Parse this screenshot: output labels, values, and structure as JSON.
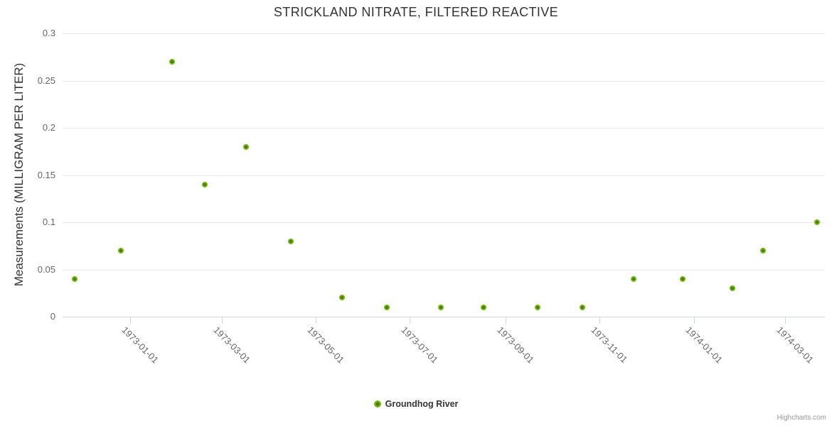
{
  "credits": "Highcharts.com",
  "colors": {
    "title_text": "#333333",
    "axis_label_text": "#666666",
    "gridline": "#e6e6e6",
    "axis_line": "#ccd6eb",
    "marker_outer": "#76b80e",
    "marker_center": "#3f7c05",
    "credits_text": "#999999",
    "background": "#ffffff"
  },
  "chart_data": {
    "type": "scatter",
    "title": "STRICKLAND NITRATE, FILTERED REACTIVE",
    "xlabel": "",
    "ylabel": "Measurements (MILLIGRAM PER LITER)",
    "ylim": [
      0,
      0.3
    ],
    "xlim": [
      "1972-11-18",
      "1974-03-27"
    ],
    "y_ticks": [
      0,
      0.05,
      0.1,
      0.15,
      0.2,
      0.25,
      0.3
    ],
    "x_ticks": [
      "1973-01-01",
      "1973-03-01",
      "1973-05-01",
      "1973-07-01",
      "1973-09-01",
      "1973-11-01",
      "1974-01-01",
      "1974-03-01"
    ],
    "grid": "horizontal-only",
    "legend_position": "bottom-center",
    "series": [
      {
        "name": "Groundhog River",
        "color": "#76b80e",
        "points": [
          {
            "x": "1972-11-26",
            "y": 0.04
          },
          {
            "x": "1972-12-26",
            "y": 0.07
          },
          {
            "x": "1973-01-28",
            "y": 0.27
          },
          {
            "x": "1973-02-18",
            "y": 0.14
          },
          {
            "x": "1973-03-17",
            "y": 0.18
          },
          {
            "x": "1973-04-15",
            "y": 0.08
          },
          {
            "x": "1973-05-18",
            "y": 0.02
          },
          {
            "x": "1973-06-16",
            "y": 0.01
          },
          {
            "x": "1973-07-21",
            "y": 0.01
          },
          {
            "x": "1973-08-18",
            "y": 0.01
          },
          {
            "x": "1973-09-22",
            "y": 0.01
          },
          {
            "x": "1973-10-21",
            "y": 0.01
          },
          {
            "x": "1973-11-23",
            "y": 0.04
          },
          {
            "x": "1973-12-25",
            "y": 0.04
          },
          {
            "x": "1974-01-26",
            "y": 0.03
          },
          {
            "x": "1974-02-15",
            "y": 0.07
          },
          {
            "x": "1974-03-22",
            "y": 0.1
          }
        ]
      }
    ]
  }
}
